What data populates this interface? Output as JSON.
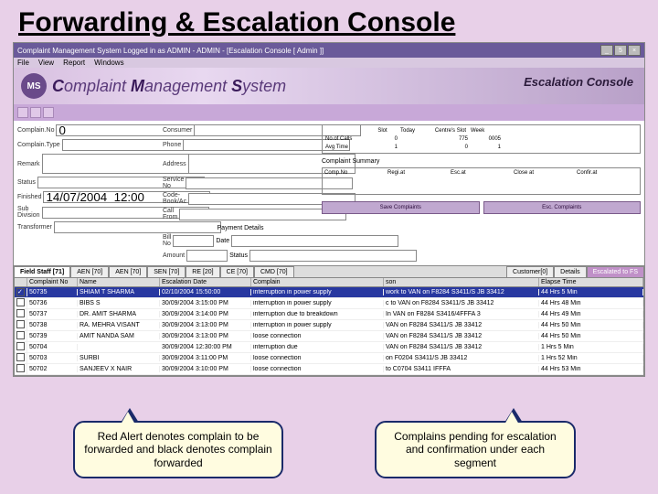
{
  "slide_title": "Forwarding & Escalation Console",
  "titlebar": "Complaint Management System Logged in as ADMIN - ADMIN - [Escalation Console [ Admin ]]",
  "window_btns": {
    "min": "_",
    "max": "5",
    "close": "×"
  },
  "menu": [
    "File",
    "View",
    "Report",
    "Windows"
  ],
  "banner": {
    "logo": "MS",
    "t1": "C",
    "t2": "omplaint ",
    "t3": "M",
    "t4": "anagement ",
    "t5": "S",
    "t6": "ystem",
    "right": "Escalation Console"
  },
  "form": {
    "complaint_no_label": "Complain.No",
    "complaint_no_val": "0",
    "btn_sel": "Sel…",
    "complaint_type_label": "Complain.Type",
    "remark_label": "Remark",
    "status_label": "Status",
    "finished_label": "Finished",
    "finished_val": "14/07/2004  12:00",
    "subdiv_label": "Sub Division",
    "transf_label": "Transformer",
    "consumer_label": "Consumer",
    "phone_label": "Phone",
    "address_label": "Address",
    "service_label": "Service No",
    "codebk_label": "Code-Book/Ac",
    "callfrom_label": "Call From",
    "billno_label": "Bill No",
    "date_label": "Date",
    "amount_label": "Amount",
    "status2_label": "Status",
    "payment_label": "Payment Details",
    "complaint_summary_label": "Complaint Summary"
  },
  "stats": {
    "hdr": [
      "",
      "Slot",
      "Today",
      "Centre's Slot",
      "Today",
      "Week"
    ],
    "r1": [
      "No.of Calls",
      "0",
      "",
      "775",
      "0",
      "0005"
    ],
    "r2": [
      "Avg Time",
      "1",
      "",
      "0",
      "0",
      "1"
    ],
    "comp_hdr": [
      "Comp.No",
      "Regi.at",
      "Esc.at",
      "Close at",
      "Confir.at"
    ]
  },
  "action_btns": {
    "save": "Save Complaints",
    "esc": "Esc. Complaints"
  },
  "tabs": {
    "fs_label": "Field Staff [71]",
    "items": [
      "AEN [70]",
      "AEN [70]",
      "SEN [70]",
      "RE [20]",
      "CE [70]",
      "CMD [70]"
    ],
    "cust_label": "Customer[0]",
    "details_label": "Details",
    "esc_label": "Escalated to FS"
  },
  "table": {
    "cols": [
      "",
      "Complaint No",
      "Name",
      "Escalation Date",
      "Complain",
      "son",
      "Elapse Time"
    ],
    "rows": [
      {
        "chk": true,
        "hl": true,
        "no": "50735",
        "name": "SHIAM T SHARMA",
        "date": "02/10/2004 15:50:00",
        "comp": "interruption in power supply",
        "son": "work to VAN on F8284 S3411/S JB 33412",
        "elap": "44 Hrs 5 Min"
      },
      {
        "chk": false,
        "hl": false,
        "no": "50736",
        "name": "BIBS S",
        "date": "30/09/2004 3:15:00 PM",
        "comp": "interruption in power supply",
        "son": "c to VAN on F8284 S3411/S JB 33412",
        "elap": "44 Hrs 48 Min"
      },
      {
        "chk": false,
        "hl": false,
        "no": "50737",
        "name": "DR. AMIT SHARMA",
        "date": "30/09/2004 3:14:00 PM",
        "comp": "interruption due to breakdown",
        "son": "In VAN on F8284 S3416/4FFFA 3",
        "elap": "44 Hrs 49 Min"
      },
      {
        "chk": false,
        "hl": false,
        "no": "50738",
        "name": "RA. MEHRA VISANT",
        "date": "30/09/2004 3:13:00 PM",
        "comp": "interruption in power supply",
        "son": "VAN on F8284 S3411/S JB 33412",
        "elap": "44 Hrs 50 Min"
      },
      {
        "chk": false,
        "hl": false,
        "no": "50739",
        "name": "AMIT NANDA SAM",
        "date": "30/09/2004 3:13:00 PM",
        "comp": "loose connection",
        "son": "VAN on F8284 S3411/S JB 33412",
        "elap": "44 Hrs 50 Min"
      },
      {
        "chk": false,
        "hl": false,
        "no": "50704",
        "name": "",
        "date": "30/09/2004 12:30:00 PM",
        "comp": "interruption due",
        "son": "VAN on F8284 S3411/S JB 33412",
        "elap": "1 Hrs 5 Min"
      },
      {
        "chk": false,
        "hl": false,
        "no": "50703",
        "name": "SURBI",
        "date": "30/09/2004 3:11:00 PM",
        "comp": "loose connection",
        "son": " on F0204 S3411/S JB 33412",
        "elap": "1 Hrs 52 Min"
      },
      {
        "chk": false,
        "hl": false,
        "no": "50702",
        "name": "SANJEEV X NAIR",
        "date": "30/09/2004 3:10:00 PM",
        "comp": "loose connection",
        "son": "to C0704 S3411  IFFFA",
        "elap": "44 Hrs 53 Min"
      }
    ]
  },
  "callouts": {
    "c1": "Red Alert denotes complain to be forwarded and black denotes complain forwarded",
    "c2": "Complains pending for escalation and confirmation under each segment"
  },
  "colors": {
    "bg": "#e8d0e8",
    "titlebar": "#6a5a9a",
    "banner_accent": "#5a3a7a",
    "tab_active": "#c090c8",
    "row_highlight": "#2838a0",
    "callout_bg": "#fffce0",
    "callout_border": "#1a2a6a",
    "action_btn": "#c0a8d0"
  }
}
